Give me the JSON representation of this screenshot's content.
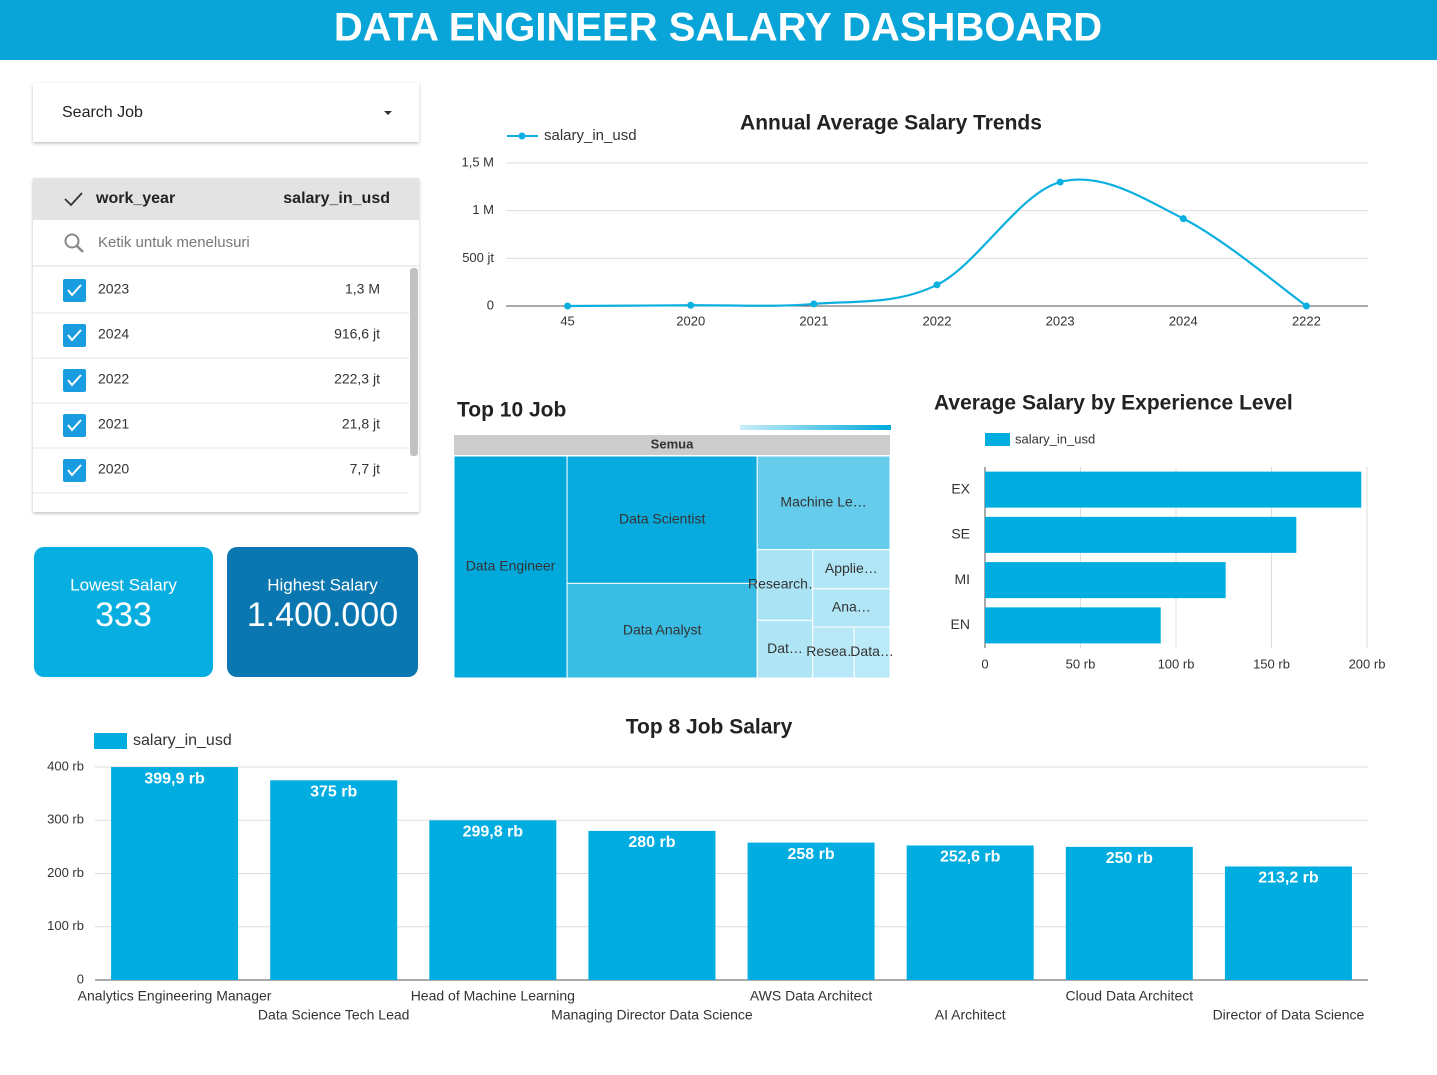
{
  "header": {
    "title": "DATA ENGINEER SALARY DASHBOARD"
  },
  "filter": {
    "label": "Search Job"
  },
  "table": {
    "columns": [
      "work_year",
      "salary_in_usd"
    ],
    "search_placeholder": "Ketik untuk menelusuri",
    "rows": [
      [
        "2023",
        "1,3 M"
      ],
      [
        "2024",
        "916,6 jt"
      ],
      [
        "2022",
        "222,3 jt"
      ],
      [
        "2021",
        "21,8 jt"
      ],
      [
        "2020",
        "7,7 jt"
      ]
    ]
  },
  "kpis": [
    {
      "label": "Lowest Salary",
      "value": "333"
    },
    {
      "label": "Highest Salary",
      "value": "1.400.000"
    }
  ],
  "chart_data": [
    {
      "type": "line",
      "title": "Annual Average Salary Trends",
      "categories": [
        "45",
        "2020",
        "2021",
        "2022",
        "2023",
        "2024",
        "2222"
      ],
      "series": [
        {
          "name": "salary_in_usd",
          "color": "#0bb0e0",
          "values": [
            0,
            7700000,
            21800000,
            222300000,
            1300000000,
            916600000,
            0
          ]
        }
      ],
      "ylim": [
        0,
        1500000000
      ],
      "yticks": [
        0,
        {
          "value": 500000000,
          "label": "500 jt"
        },
        {
          "value": 1000000000,
          "label": "1 M"
        },
        {
          "value": 1500000000,
          "label": "1,5 M"
        }
      ],
      "grid": true,
      "legend": "top-left"
    },
    {
      "type": "treemap",
      "title": "Top 10 Job",
      "root_label": "Semua",
      "categories": [
        "Data Engineer",
        "Data Scientist",
        "Data Analyst",
        "Machine Le…",
        "Research…",
        "Dat…",
        "Applie…",
        "Ana…",
        "Resea…",
        "Data…"
      ],
      "values": [
        25086,
        24198,
        17976,
        12420,
        3920,
        3198,
        3024,
        2952,
        2112,
        1824
      ],
      "color": "#00a9dc"
    },
    {
      "type": "hbar",
      "title": "Average Salary by Experience Level",
      "categories": [
        "EX",
        "SE",
        "MI",
        "EN"
      ],
      "series": [
        {
          "name": "salary_in_usd",
          "color": "#00ade0",
          "values": [
            197000,
            163000,
            126000,
            92000
          ]
        }
      ],
      "xlim": [
        0,
        200000
      ],
      "xticks": [
        0,
        {
          "value": 50000,
          "label": "50 rb"
        },
        {
          "value": 100000,
          "label": "100 rb"
        },
        {
          "value": 150000,
          "label": "150 rb"
        },
        {
          "value": 200000,
          "label": "200 rb"
        }
      ],
      "grid": true,
      "legend": "top-left"
    },
    {
      "type": "bar",
      "title": "Top 8 Job Salary",
      "categories": [
        "Analytics Engineering Manager",
        "Data Science Tech Lead",
        "Head of Machine Learning",
        "Managing Director Data Science",
        "AWS Data Architect",
        "AI Architect",
        "Cloud Data Architect",
        "Director of Data Science"
      ],
      "series": [
        {
          "name": "salary_in_usd",
          "color": "#00ade0",
          "values": [
            399900,
            375000,
            299800,
            280000,
            258000,
            252600,
            250000,
            213200
          ],
          "value_labels": [
            "399,9 rb",
            "375 rb",
            "299,8 rb",
            "280 rb",
            "258 rb",
            "252,6 rb",
            "250 rb",
            "213,2 rb"
          ]
        }
      ],
      "ylim": [
        0,
        400000
      ],
      "yticks": [
        0,
        {
          "value": 100000,
          "label": "100 rb"
        },
        {
          "value": 200000,
          "label": "200 rb"
        },
        {
          "value": 300000,
          "label": "300 rb"
        },
        {
          "value": 400000,
          "label": "400 rb"
        }
      ],
      "grid": true,
      "legend": "top-left"
    }
  ]
}
